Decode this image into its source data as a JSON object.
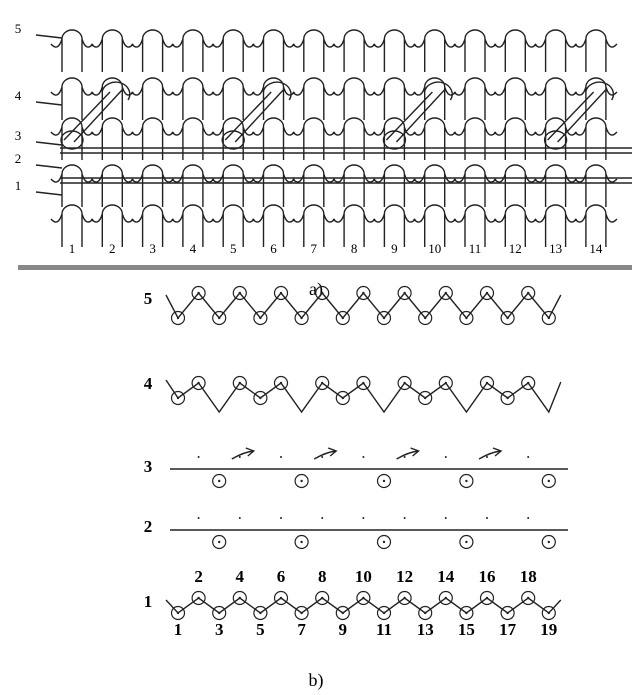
{
  "part_a": {
    "row_labels": [
      "5",
      "4",
      "3",
      "2",
      "1"
    ],
    "column_labels": [
      "1",
      "2",
      "3",
      "4",
      "5",
      "6",
      "7",
      "8",
      "9",
      "10",
      "11",
      "12",
      "13",
      "14"
    ],
    "caption": "a)"
  },
  "part_b": {
    "row_labels": [
      "5",
      "4",
      "3",
      "2",
      "1"
    ],
    "needle_numbers_even": [
      "2",
      "4",
      "6",
      "8",
      "10",
      "12",
      "14",
      "16",
      "18"
    ],
    "needle_numbers_odd": [
      "1",
      "3",
      "5",
      "7",
      "9",
      "11",
      "13",
      "15",
      "17",
      "19"
    ],
    "caption": "b)"
  }
}
